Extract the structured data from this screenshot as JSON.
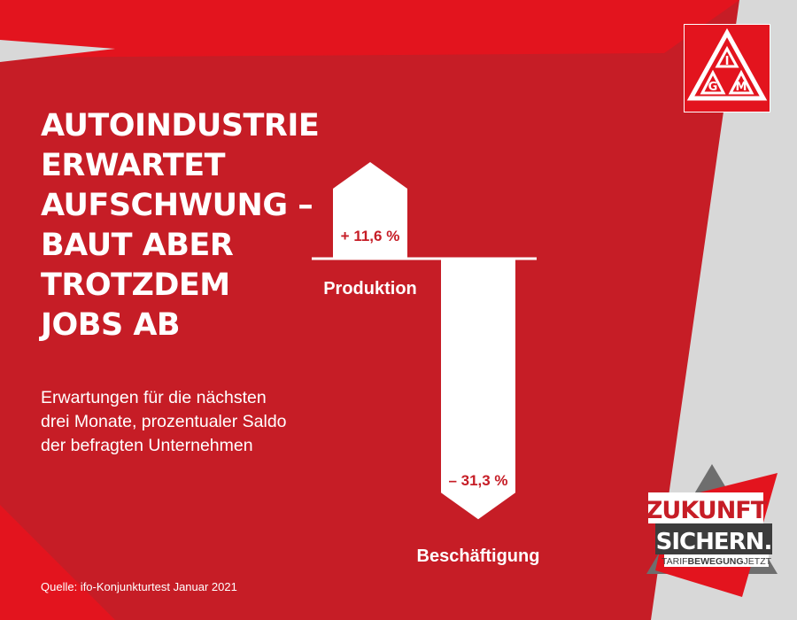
{
  "title_lines": [
    "AUTOINDUSTRIE",
    "ERWARTET",
    "AUFSCHWUNG –",
    "BAUT ABER",
    "TROTZDEM",
    "JOBS AB"
  ],
  "subtitle_lines": [
    "Erwartungen für die nächsten",
    "drei Monate, prozentualer Saldo",
    "der befragten Unternehmen"
  ],
  "source": "Quelle: ifo-Konjunkturtest Januar 2021",
  "colors": {
    "red": "#c61d26",
    "bright_red": "#e3141e",
    "grey": "#d8d8d8",
    "white": "#ffffff",
    "dark": "#3c3c3c"
  },
  "chart_data": {
    "type": "bar",
    "categories": [
      "Produktion",
      "Beschäftigung"
    ],
    "values": [
      11.6,
      -31.3
    ],
    "value_labels": [
      "+ 11,6 %",
      "– 31,3 %"
    ],
    "title": "",
    "xlabel": "",
    "ylabel": "",
    "ylim": [
      -31.3,
      11.6
    ],
    "grid": false,
    "legend": "none"
  },
  "logo": {
    "letters": [
      "I",
      "G",
      "M"
    ]
  },
  "badge": {
    "line1": "ZUKUNFT",
    "line2": "SICHERN.",
    "tag_part1": "TARIF",
    "tag_part2": "BEWEGUNG",
    "tag_part3": "JETZT"
  }
}
